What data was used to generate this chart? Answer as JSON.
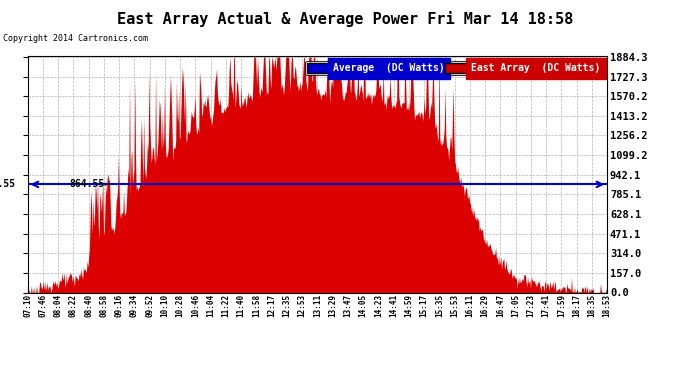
{
  "title": "East Array Actual & Average Power Fri Mar 14 18:58",
  "copyright": "Copyright 2014 Cartronics.com",
  "legend_avg_label": "Average  (DC Watts)",
  "legend_east_label": "East Array  (DC Watts)",
  "legend_avg_color": "#0000cc",
  "legend_east_color": "#cc0000",
  "hline_value": 864.55,
  "hline_label": "864.55",
  "yticks_right": [
    0.0,
    157.0,
    314.0,
    471.1,
    628.1,
    785.1,
    942.1,
    1099.2,
    1256.2,
    1413.2,
    1570.2,
    1727.3,
    1884.3
  ],
  "ymax": 1884.3,
  "ymin": 0.0,
  "fill_color": "#dd0000",
  "bg_color": "#ffffff",
  "grid_color": "#aaaaaa",
  "xtick_labels": [
    "07:10",
    "07:46",
    "08:04",
    "08:22",
    "08:40",
    "08:58",
    "09:16",
    "09:34",
    "09:52",
    "10:10",
    "10:28",
    "10:46",
    "11:04",
    "11:22",
    "11:40",
    "11:58",
    "12:17",
    "12:35",
    "12:53",
    "13:11",
    "13:29",
    "13:47",
    "14:05",
    "14:23",
    "14:41",
    "14:59",
    "15:17",
    "15:35",
    "15:53",
    "16:11",
    "16:29",
    "16:47",
    "17:05",
    "17:23",
    "17:41",
    "17:59",
    "18:17",
    "18:35",
    "18:53"
  ]
}
